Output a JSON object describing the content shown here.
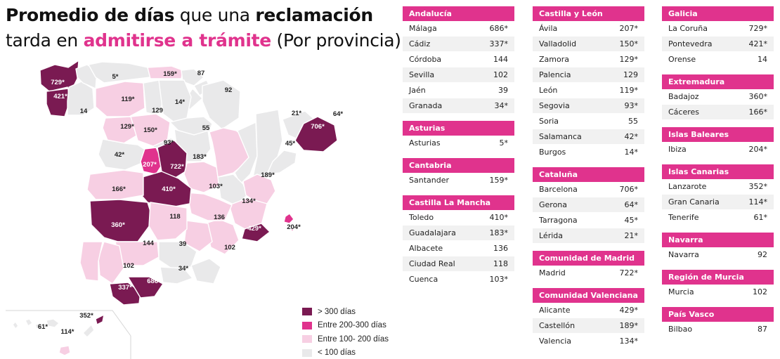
{
  "title": {
    "line1_bold": "Promedio de días",
    "line1_regular": " que una ",
    "line1_bold2": "reclamación",
    "line2_regular": "tarda en ",
    "line2_pink": "admitirse a trámite",
    "line2_suffix": " (Por provincia)"
  },
  "colors": {
    "accent": "#e0338d",
    "cat_gt300": "#7a1a52",
    "cat_200_300": "#e0338d",
    "cat_100_200": "#f7cfe3",
    "cat_lt100": "#e9e9ea",
    "border": "#ffffff"
  },
  "legend": [
    {
      "label": "> 300 días",
      "color": "#7a1a52"
    },
    {
      "label": "Entre 200-300 días",
      "color": "#e0338d"
    },
    {
      "label": "Entre 100- 200 días",
      "color": "#f7cfe3"
    },
    {
      "label": "< 100 días",
      "color": "#e9e9ea"
    }
  ],
  "map_labels": [
    "729*",
    "421*",
    "14",
    "5*",
    "159*",
    "87",
    "119*",
    "129",
    "14*",
    "92",
    "129*",
    "150*",
    "55",
    "21*",
    "64*",
    "706*",
    "93*",
    "45*",
    "42*",
    "207*",
    "722*",
    "183*",
    "189*",
    "166*",
    "410*",
    "103*",
    "134*",
    "360*",
    "118",
    "136",
    "429*",
    "204*",
    "144",
    "39",
    "102",
    "102",
    "34*",
    "337*",
    "686*",
    "352*",
    "61*",
    "114*"
  ],
  "groups": [
    {
      "name": "Andalucía",
      "rows": [
        [
          "Málaga",
          "686*"
        ],
        [
          "Cádiz",
          "337*"
        ],
        [
          "Córdoba",
          "144"
        ],
        [
          "Sevilla",
          "102"
        ],
        [
          "Jaén",
          "39"
        ],
        [
          "Granada",
          "34*"
        ]
      ]
    },
    {
      "name": "Asturias",
      "rows": [
        [
          "Asturias",
          "5*"
        ]
      ]
    },
    {
      "name": "Cantabria",
      "rows": [
        [
          "Santander",
          "159*"
        ]
      ]
    },
    {
      "name": "Castilla La Mancha",
      "rows": [
        [
          "Toledo",
          "410*"
        ],
        [
          "Guadalajara",
          "183*"
        ],
        [
          "Albacete",
          "136"
        ],
        [
          "Ciudad Real",
          "118"
        ],
        [
          "Cuenca",
          "103*"
        ]
      ]
    },
    {
      "name": "Castilla y León",
      "rows": [
        [
          "Ávila",
          "207*"
        ],
        [
          "Valladolid",
          "150*"
        ],
        [
          "Zamora",
          "129*"
        ],
        [
          "Palencia",
          "129"
        ],
        [
          "León",
          "119*"
        ],
        [
          "Segovia",
          "93*"
        ],
        [
          "Soria",
          "55"
        ],
        [
          "Salamanca",
          "42*"
        ],
        [
          " Burgos",
          "14*"
        ]
      ]
    },
    {
      "name": "Cataluña",
      "rows": [
        [
          "Barcelona",
          "706*"
        ],
        [
          "Gerona",
          "64*"
        ],
        [
          "Tarragona",
          "45*"
        ],
        [
          "Lérida",
          "21*"
        ]
      ]
    },
    {
      "name": "Comunidad de Madrid",
      "rows": [
        [
          "Madrid",
          "722*"
        ]
      ]
    },
    {
      "name": "Comunidad Valenciana",
      "rows": [
        [
          "Alicante",
          "429*"
        ],
        [
          "Castellón",
          "189*"
        ],
        [
          "Valencia",
          "134*"
        ]
      ]
    },
    {
      "name": "Galicia",
      "rows": [
        [
          "La Coruña",
          "729*"
        ],
        [
          "Pontevedra",
          "421*"
        ],
        [
          "Orense",
          "14"
        ]
      ]
    },
    {
      "name": "Extremadura",
      "rows": [
        [
          "Badajoz",
          "360*"
        ],
        [
          "Cáceres",
          "166*"
        ]
      ]
    },
    {
      "name": "Islas Baleares",
      "rows": [
        [
          "Ibiza",
          "204*"
        ]
      ]
    },
    {
      "name": "Islas Canarias",
      "rows": [
        [
          "Lanzarote",
          "352*"
        ],
        [
          "Gran Canaria",
          "114*"
        ],
        [
          "Tenerife",
          "61*"
        ]
      ]
    },
    {
      "name": "Navarra",
      "rows": [
        [
          "Navarra",
          "92"
        ]
      ]
    },
    {
      "name": "Región de Murcia",
      "rows": [
        [
          "Murcia",
          "102"
        ]
      ]
    },
    {
      "name": "País Vasco",
      "rows": [
        [
          "Bilbao",
          "87"
        ]
      ]
    }
  ]
}
